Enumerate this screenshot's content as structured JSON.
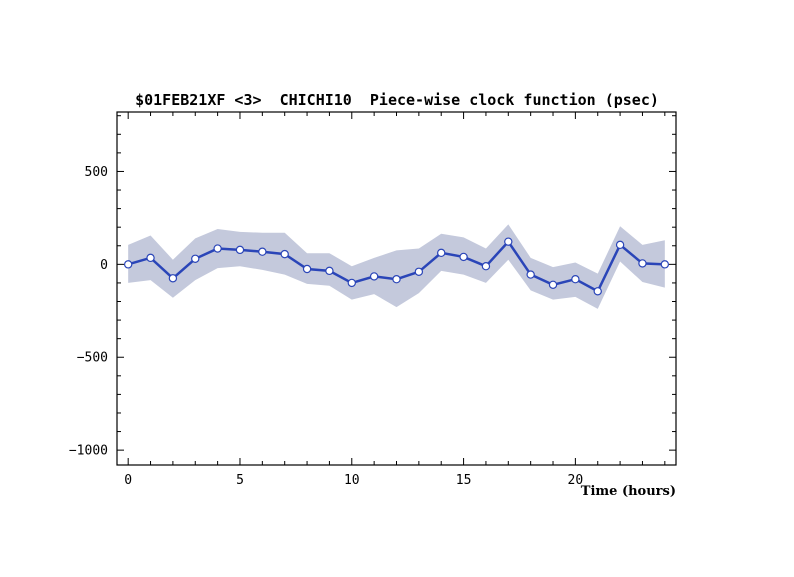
{
  "chart_data": {
    "type": "line",
    "title": "$01FEB21XF <3>  CHICHI10  Piece-wise clock function (psec)",
    "xlabel": "Time (hours)",
    "ylabel": "",
    "xlim": [
      -0.5,
      24.5
    ],
    "ylim": [
      -1080,
      820
    ],
    "x_ticks": [
      0,
      5,
      10,
      15,
      20
    ],
    "y_ticks": [
      500,
      0,
      -500,
      -1000
    ],
    "x_tick_labels": [
      "0",
      "5",
      "10",
      "15",
      "20"
    ],
    "y_tick_labels": [
      "500",
      "0",
      "−500",
      "−1000"
    ],
    "grid": false,
    "legend": "none",
    "colors": {
      "line": "#2a45b8",
      "band": "#c4c9dc",
      "marker_fill": "#ffffff"
    },
    "series": [
      {
        "x": [
          0,
          1,
          2,
          3,
          4,
          5,
          6,
          7,
          8,
          9,
          10,
          11,
          12,
          13,
          14,
          15,
          16,
          17,
          18,
          19,
          20,
          21,
          22,
          23,
          24
        ],
        "values": [
          0,
          35,
          -75,
          30,
          85,
          78,
          68,
          55,
          -25,
          -35,
          -100,
          -65,
          -80,
          -40,
          62,
          40,
          -10,
          122,
          -55,
          -110,
          -80,
          -145,
          105,
          5,
          0
        ],
        "upper": [
          105,
          155,
          25,
          140,
          190,
          175,
          170,
          170,
          60,
          60,
          -10,
          35,
          75,
          85,
          165,
          145,
          85,
          215,
          35,
          -15,
          10,
          -50,
          205,
          105,
          130
        ],
        "lower": [
          -100,
          -85,
          -180,
          -85,
          -20,
          -10,
          -30,
          -55,
          -105,
          -115,
          -190,
          -160,
          -230,
          -155,
          -35,
          -55,
          -100,
          25,
          -140,
          -190,
          -175,
          -240,
          15,
          -95,
          -125
        ]
      }
    ]
  }
}
